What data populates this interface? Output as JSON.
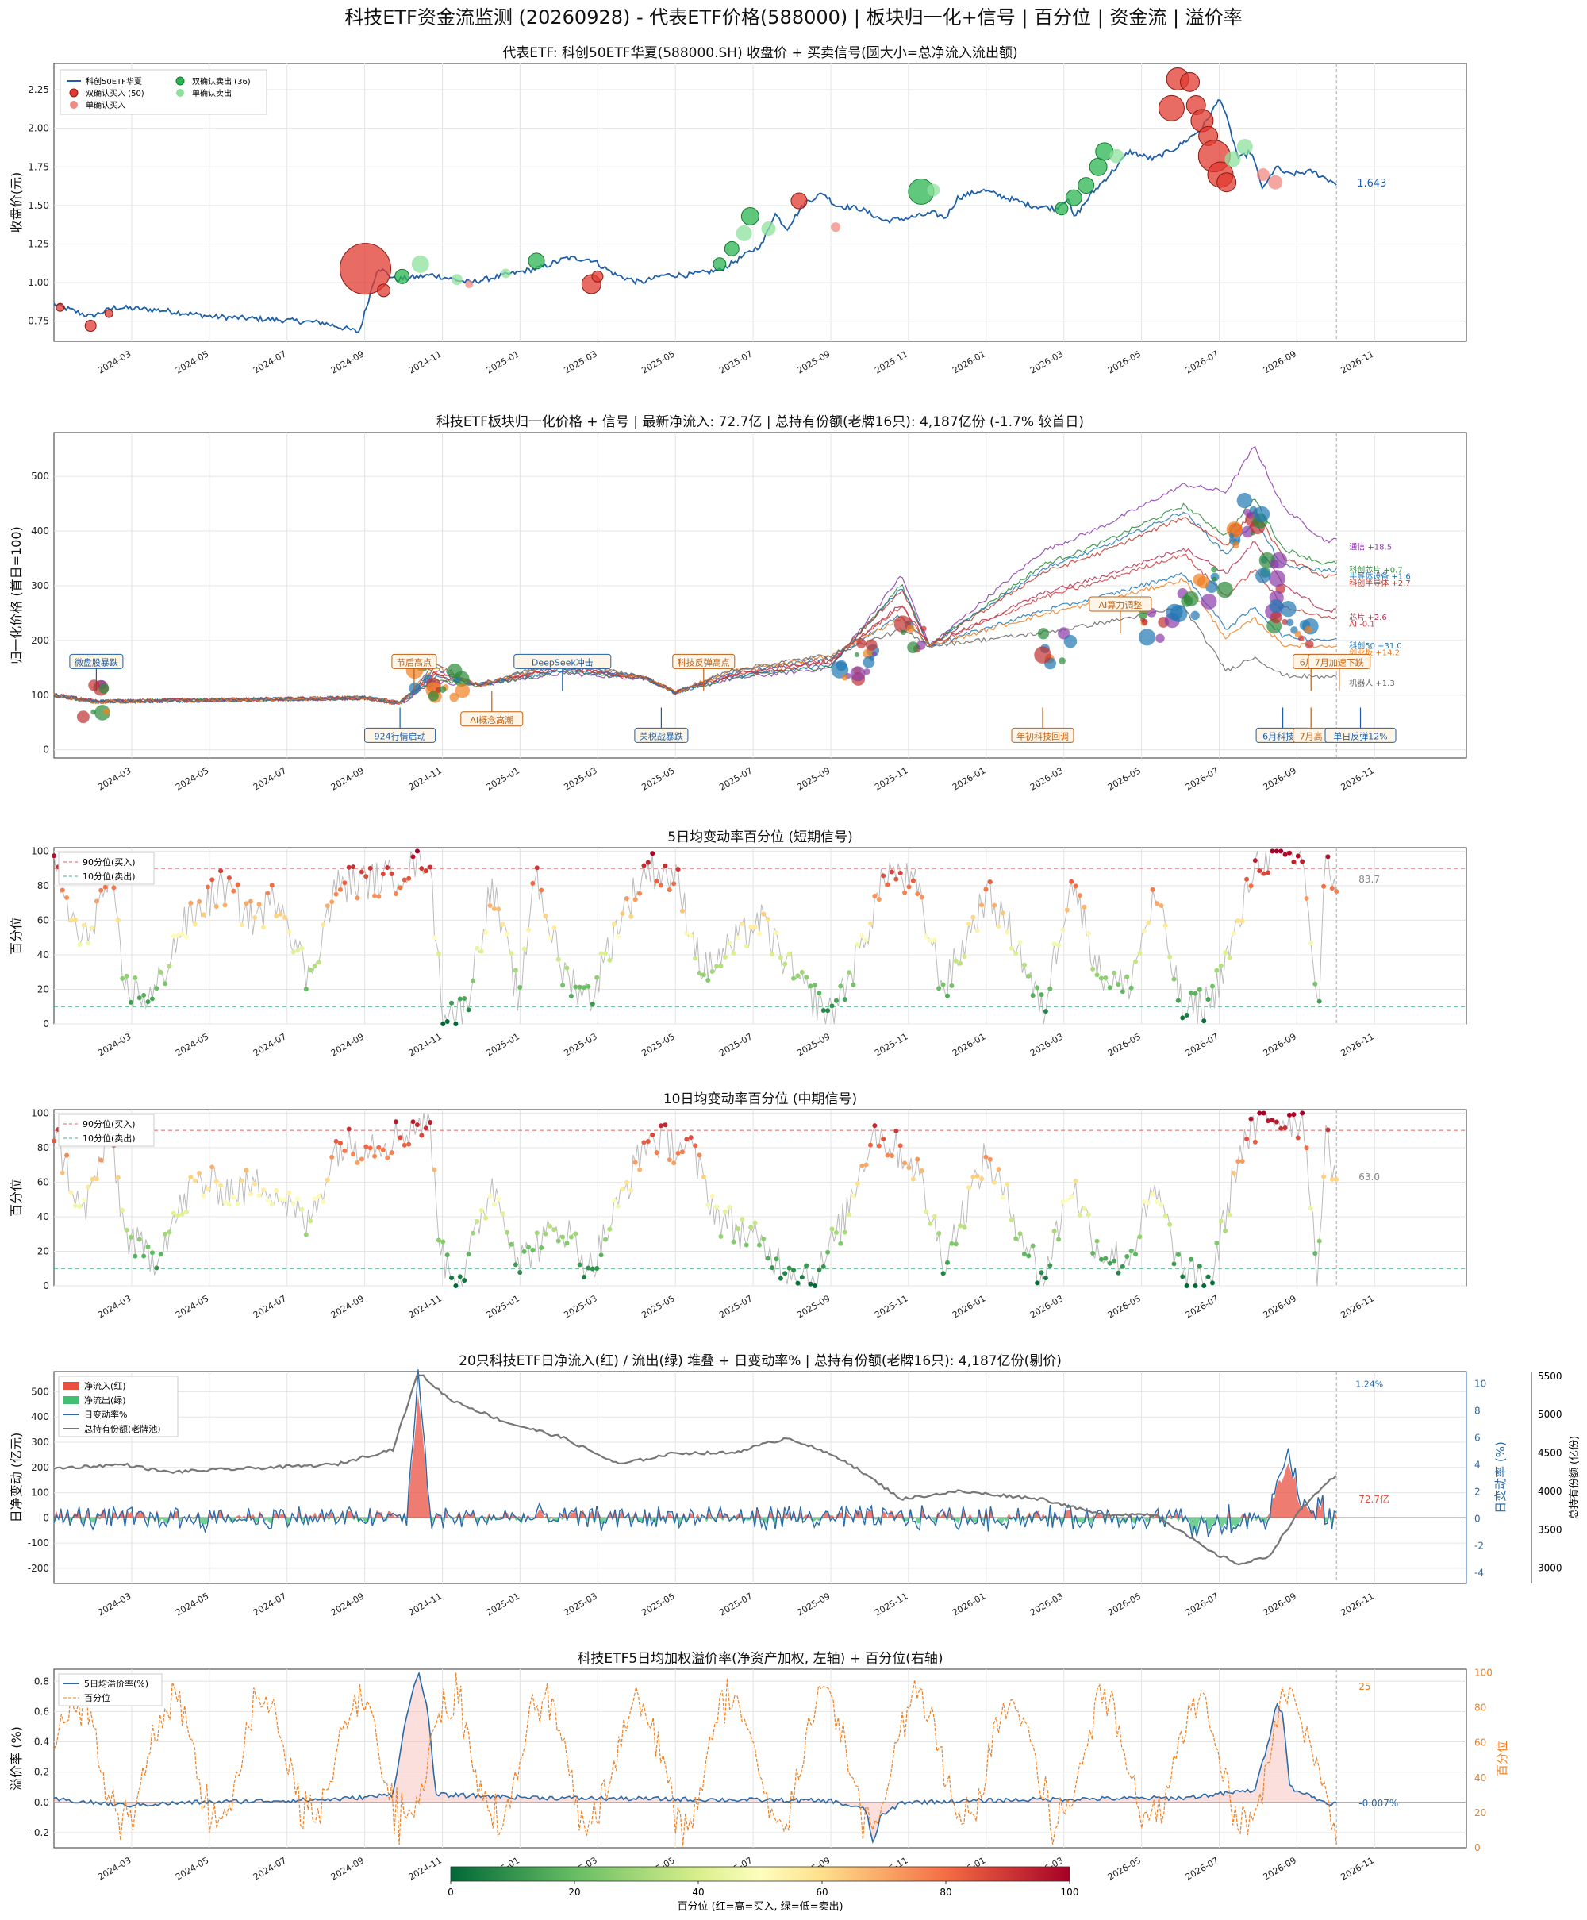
{
  "title": "科技ETF资金流监测 (20260928) - 代表ETF价格(588000) | 板块归一化+信号 | 百分位 | 资金流 | 溢价率",
  "x_ticks": [
    "2024-03",
    "2024-05",
    "2024-07",
    "2024-09",
    "2024-11",
    "2025-01",
    "2025-03",
    "2025-05",
    "2025-07",
    "2025-09",
    "2025-11",
    "2026-01",
    "2026-03",
    "2026-05",
    "2026-07",
    "2026-09",
    "2026-11"
  ],
  "colors": {
    "price": "#1f5fa8",
    "buy": "#e03a30",
    "buy_single": "#f08a80",
    "sell": "#2ab552",
    "sell_single": "#8ee09c",
    "gray": "#777777",
    "orange": "#f08020"
  },
  "chart_data": [
    {
      "id": "price",
      "type": "line",
      "title": "代表ETF: 科创50ETF华夏(588000.SH) 收盘价 + 买卖信号(圆大小=总净流入流出额)",
      "ylabel": "收盘价(元)",
      "ylim": [
        0.62,
        2.42
      ],
      "yticks": [
        "0.75",
        "1.00",
        "1.25",
        "1.50",
        "1.75",
        "2.00",
        "2.25"
      ],
      "legend": [
        "科创50ETF华夏",
        "双确认买入 (50)",
        "单确认买入",
        "双确认卖出 (36)",
        "单确认卖出"
      ],
      "last_label": "1.643",
      "anchors": [
        [
          0,
          0.86
        ],
        [
          0.03,
          0.78
        ],
        [
          0.05,
          0.84
        ],
        [
          0.09,
          0.82
        ],
        [
          0.13,
          0.78
        ],
        [
          0.18,
          0.76
        ],
        [
          0.22,
          0.74
        ],
        [
          0.25,
          0.68
        ],
        [
          0.265,
          1.1
        ],
        [
          0.28,
          1.02
        ],
        [
          0.31,
          1.05
        ],
        [
          0.34,
          1.0
        ],
        [
          0.37,
          1.05
        ],
        [
          0.4,
          1.1
        ],
        [
          0.42,
          1.16
        ],
        [
          0.44,
          1.15
        ],
        [
          0.46,
          1.05
        ],
        [
          0.48,
          1.0
        ],
        [
          0.5,
          1.05
        ],
        [
          0.52,
          1.05
        ],
        [
          0.545,
          1.08
        ],
        [
          0.56,
          1.15
        ],
        [
          0.58,
          1.25
        ],
        [
          0.59,
          1.45
        ],
        [
          0.6,
          1.35
        ],
        [
          0.615,
          1.52
        ],
        [
          0.63,
          1.58
        ],
        [
          0.64,
          1.5
        ],
        [
          0.66,
          1.48
        ],
        [
          0.68,
          1.4
        ],
        [
          0.7,
          1.42
        ],
        [
          0.72,
          1.45
        ],
        [
          0.73,
          1.42
        ],
        [
          0.74,
          1.55
        ],
        [
          0.76,
          1.6
        ],
        [
          0.78,
          1.55
        ],
        [
          0.8,
          1.5
        ],
        [
          0.82,
          1.48
        ],
        [
          0.83,
          1.55
        ],
        [
          0.835,
          1.42
        ],
        [
          0.85,
          1.58
        ],
        [
          0.87,
          1.75
        ],
        [
          0.88,
          1.85
        ],
        [
          0.9,
          1.8
        ],
        [
          0.92,
          1.88
        ],
        [
          0.94,
          2.0
        ],
        [
          0.955,
          2.2
        ],
        [
          0.97,
          1.8
        ],
        [
          0.98,
          1.85
        ],
        [
          0.99,
          1.6
        ],
        [
          1.0,
          1.75
        ],
        [
          1.01,
          1.7
        ],
        [
          1.03,
          1.72
        ],
        [
          1.05,
          1.643
        ]
      ],
      "bubbles": [
        {
          "x": 0.005,
          "y": 0.84,
          "r": 5,
          "k": "buy"
        },
        {
          "x": 0.03,
          "y": 0.72,
          "r": 7,
          "k": "buy"
        },
        {
          "x": 0.045,
          "y": 0.8,
          "r": 5,
          "k": "buy"
        },
        {
          "x": 0.255,
          "y": 1.09,
          "r": 32,
          "k": "buy"
        },
        {
          "x": 0.27,
          "y": 0.95,
          "r": 8,
          "k": "buy"
        },
        {
          "x": 0.285,
          "y": 1.04,
          "r": 9,
          "k": "sell"
        },
        {
          "x": 0.3,
          "y": 1.12,
          "r": 11,
          "k": "sell_single"
        },
        {
          "x": 0.33,
          "y": 1.02,
          "r": 7,
          "k": "sell_single"
        },
        {
          "x": 0.34,
          "y": 0.99,
          "r": 5,
          "k": "buy_single"
        },
        {
          "x": 0.37,
          "y": 1.06,
          "r": 6,
          "k": "sell_single"
        },
        {
          "x": 0.395,
          "y": 1.14,
          "r": 10,
          "k": "sell"
        },
        {
          "x": 0.44,
          "y": 0.99,
          "r": 12,
          "k": "buy"
        },
        {
          "x": 0.445,
          "y": 1.04,
          "r": 7,
          "k": "buy"
        },
        {
          "x": 0.545,
          "y": 1.12,
          "r": 8,
          "k": "sell"
        },
        {
          "x": 0.555,
          "y": 1.22,
          "r": 9,
          "k": "sell"
        },
        {
          "x": 0.565,
          "y": 1.32,
          "r": 10,
          "k": "sell_single"
        },
        {
          "x": 0.57,
          "y": 1.43,
          "r": 11,
          "k": "sell"
        },
        {
          "x": 0.585,
          "y": 1.35,
          "r": 9,
          "k": "sell_single"
        },
        {
          "x": 0.61,
          "y": 1.53,
          "r": 10,
          "k": "buy"
        },
        {
          "x": 0.64,
          "y": 1.36,
          "r": 6,
          "k": "buy_single"
        },
        {
          "x": 0.71,
          "y": 1.59,
          "r": 16,
          "k": "sell"
        },
        {
          "x": 0.72,
          "y": 1.6,
          "r": 8,
          "k": "sell_single"
        },
        {
          "x": 0.825,
          "y": 1.48,
          "r": 8,
          "k": "sell"
        },
        {
          "x": 0.835,
          "y": 1.55,
          "r": 10,
          "k": "sell"
        },
        {
          "x": 0.845,
          "y": 1.63,
          "r": 10,
          "k": "sell"
        },
        {
          "x": 0.855,
          "y": 1.75,
          "r": 11,
          "k": "sell"
        },
        {
          "x": 0.86,
          "y": 1.85,
          "r": 11,
          "k": "sell"
        },
        {
          "x": 0.87,
          "y": 1.82,
          "r": 9,
          "k": "sell_single"
        },
        {
          "x": 0.915,
          "y": 2.13,
          "r": 16,
          "k": "buy"
        },
        {
          "x": 0.92,
          "y": 2.32,
          "r": 14,
          "k": "buy"
        },
        {
          "x": 0.93,
          "y": 2.3,
          "r": 12,
          "k": "buy"
        },
        {
          "x": 0.935,
          "y": 2.15,
          "r": 12,
          "k": "buy"
        },
        {
          "x": 0.94,
          "y": 2.05,
          "r": 14,
          "k": "buy"
        },
        {
          "x": 0.945,
          "y": 1.95,
          "r": 12,
          "k": "buy"
        },
        {
          "x": 0.95,
          "y": 1.82,
          "r": 20,
          "k": "buy"
        },
        {
          "x": 0.955,
          "y": 1.7,
          "r": 16,
          "k": "buy"
        },
        {
          "x": 0.96,
          "y": 1.65,
          "r": 12,
          "k": "buy"
        },
        {
          "x": 0.965,
          "y": 1.8,
          "r": 10,
          "k": "sell_single"
        },
        {
          "x": 0.975,
          "y": 1.88,
          "r": 10,
          "k": "sell_single"
        },
        {
          "x": 0.99,
          "y": 1.7,
          "r": 8,
          "k": "buy_single"
        },
        {
          "x": 1.0,
          "y": 1.65,
          "r": 9,
          "k": "buy_single"
        }
      ]
    },
    {
      "id": "sector",
      "type": "line",
      "title": "科技ETF板块归一化价格 + 信号 | 最新净流入: 72.7亿 | 总持有份额(老牌16只): 4,187亿份 (-1.7% 较首日)",
      "ylabel": "归一化价格 (首日=100)",
      "ylim": [
        -15,
        580
      ],
      "yticks": [
        "0",
        "100",
        "200",
        "300",
        "400",
        "500"
      ],
      "series_labels": [
        {
          "name": "通信 +18.5",
          "y": 372,
          "color": "#8a3aa8"
        },
        {
          "name": "科创芯片 +0.7",
          "y": 330,
          "color": "#2a8a3a"
        },
        {
          "name": "半导体设备 +1.6",
          "y": 318,
          "color": "#1f77b4"
        },
        {
          "name": "科创半导体 +2.7",
          "y": 306,
          "color": "#c0392b"
        },
        {
          "name": "芯片 +2.6",
          "y": 243,
          "color": "#b03050"
        },
        {
          "name": "AI -0.1",
          "y": 231,
          "color": "#d04040"
        },
        {
          "name": "科创50 +31.0",
          "y": 191,
          "color": "#1f77b4"
        },
        {
          "name": "创业板 +14.2",
          "y": 179,
          "color": "#f08020"
        },
        {
          "name": "机器人 +1.3",
          "y": 123,
          "color": "#666666"
        }
      ],
      "annotations": [
        {
          "text": "微盘股暴跌",
          "x": 0.03,
          "y": 160,
          "dir": "down",
          "color": "#1f5fa8"
        },
        {
          "text": "924行情启动",
          "x": 0.245,
          "y": 25,
          "dir": "up",
          "color": "#1f5fa8"
        },
        {
          "text": "节后高点",
          "x": 0.255,
          "y": 160,
          "dir": "down",
          "color": "#c06010"
        },
        {
          "text": "AI概念高潮",
          "x": 0.31,
          "y": 55,
          "dir": "up",
          "color": "#c06010"
        },
        {
          "text": "DeepSeek冲击",
          "x": 0.36,
          "y": 160,
          "dir": "down",
          "color": "#1f5fa8"
        },
        {
          "text": "关税战暴跌",
          "x": 0.43,
          "y": 25,
          "dir": "up",
          "color": "#1f5fa8"
        },
        {
          "text": "科技反弹高点",
          "x": 0.46,
          "y": 160,
          "dir": "down",
          "color": "#c06010"
        },
        {
          "text": "AI算力调整",
          "x": 0.755,
          "y": 265,
          "dir": "down",
          "color": "#c06010"
        },
        {
          "text": "年初科技回调",
          "x": 0.7,
          "y": 25,
          "dir": "up",
          "color": "#c06010"
        },
        {
          "text": "6月科技暴",
          "x": 0.87,
          "y": 25,
          "dir": "up",
          "color": "#1f5fa8"
        },
        {
          "text": "6月科",
          "x": 0.89,
          "y": 160,
          "dir": "down",
          "color": "#c06010"
        },
        {
          "text": "7月加速下跌",
          "x": 0.91,
          "y": 160,
          "dir": "down",
          "color": "#c06010"
        },
        {
          "text": "7月高",
          "x": 0.89,
          "y": 25,
          "dir": "up",
          "color": "#c06010"
        },
        {
          "text": "单日反弹12%",
          "x": 0.925,
          "y": 25,
          "dir": "up",
          "color": "#1f5fa8"
        }
      ]
    },
    {
      "id": "pct5",
      "type": "scatter",
      "title": "5日均变动率百分位 (短期信号)",
      "ylabel": "百分位",
      "ylim": [
        0,
        102
      ],
      "yticks": [
        "0",
        "20",
        "40",
        "60",
        "80",
        "100"
      ],
      "legend": [
        "90分位(买入)",
        "10分位(卖出)"
      ],
      "last_label": "83.7"
    },
    {
      "id": "pct10",
      "type": "scatter",
      "title": "10日均变动率百分位 (中期信号)",
      "ylabel": "百分位",
      "ylim": [
        0,
        102
      ],
      "yticks": [
        "0",
        "20",
        "40",
        "60",
        "80",
        "100"
      ],
      "legend": [
        "90分位(买入)",
        "10分位(卖出)"
      ],
      "last_label": "63.0"
    },
    {
      "id": "flow",
      "type": "area",
      "title": "20只科技ETF日净流入(红) / 流出(绿) 堆叠 + 日变动率% | 总持有份额(老牌16只): 4,187亿份(剔价)",
      "ylabel": "日净变动 (亿元)",
      "ylabel2": "日变动率 (%)",
      "ylabel3": "总持有份额 (亿份)",
      "ylim": [
        -260,
        580
      ],
      "yticks": [
        "-200",
        "-100",
        "0",
        "100",
        "200",
        "300",
        "400",
        "500"
      ],
      "y2ticks": [
        "-4",
        "-2",
        "0",
        "2",
        "4",
        "6",
        "8",
        "10"
      ],
      "y3ticks": [
        "3000",
        "3500",
        "4000",
        "4500",
        "5000",
        "5500"
      ],
      "legend": [
        "净流入(红)",
        "净流出(绿)",
        "日变动率%",
        "总持有份额(老牌池)"
      ],
      "last_rate": "1.24%",
      "last_flow": "72.7亿"
    },
    {
      "id": "premium",
      "type": "line",
      "title": "科技ETF5日均加权溢价率(净资产加权, 左轴) + 百分位(右轴)",
      "ylabel": "溢价率 (%)",
      "ylabel2": "百分位",
      "ylim": [
        -0.3,
        0.88
      ],
      "yticks": [
        "-0.2",
        "0.0",
        "0.2",
        "0.4",
        "0.6",
        "0.8"
      ],
      "y2ticks": [
        "0",
        "20",
        "40",
        "60",
        "80",
        "100"
      ],
      "legend": [
        "5日均溢价率(%)",
        "百分位"
      ],
      "last_pct": "25",
      "last_prem": "-0.007%"
    }
  ],
  "colorbar": {
    "label": "百分位 (红=高=买入, 绿=低=卖出)",
    "ticks": [
      "0",
      "20",
      "40",
      "60",
      "80",
      "100"
    ]
  }
}
